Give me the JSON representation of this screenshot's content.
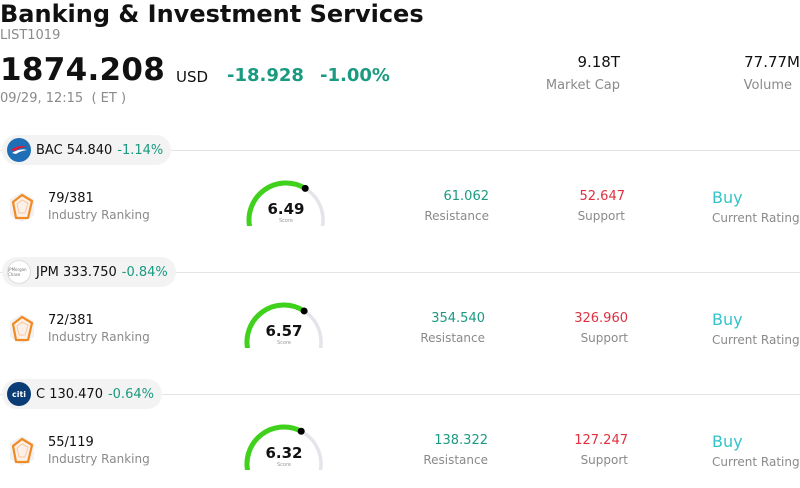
{
  "header": {
    "title": "Banking & Investment Services",
    "code": "LIST1019",
    "price": "1874.208",
    "currency": "USD",
    "change": "-18.928",
    "change_pct": "-1.00%",
    "time": "09/29, 12:15  ( ET )",
    "market_cap_value": "9.18T",
    "market_cap_label": "Market Cap",
    "volume_value": "77.77M",
    "volume_label": "Volume"
  },
  "stocks": [
    {
      "ticker": "BAC 54.840",
      "pct": "-1.14%",
      "logo": "bank-of-america-logo",
      "rank": "79/381",
      "rank_label": "Industry Ranking",
      "score": "6.49",
      "score_fraction": 0.649,
      "score_label": "Score",
      "resistance": "61.062",
      "resistance_label": "Resistance",
      "support": "52.647",
      "support_label": "Support",
      "rating": "Buy",
      "rating_label": "Current Rating"
    },
    {
      "ticker": "JPM 333.750",
      "pct": "-0.84%",
      "logo": "jpmorgan-logo",
      "logo_text": "JPMorgan Chase",
      "rank": "72/381",
      "rank_label": "Industry Ranking",
      "score": "6.57",
      "score_fraction": 0.657,
      "score_label": "Score",
      "resistance": "354.540",
      "resistance_label": "Resistance",
      "support": "326.960",
      "support_label": "Support",
      "rating": "Buy",
      "rating_label": "Current Rating"
    },
    {
      "ticker": "C 130.470",
      "pct": "-0.64%",
      "logo": "citi-logo",
      "logo_text": "citi",
      "rank": "55/119",
      "rank_label": "Industry Ranking",
      "score": "6.32",
      "score_fraction": 0.632,
      "score_label": "Score",
      "resistance": "138.322",
      "resistance_label": "Resistance",
      "support": "127.247",
      "support_label": "Support",
      "rating": "Buy",
      "rating_label": "Current Rating"
    }
  ],
  "colors": {
    "positive_teal": "#1a9a80",
    "support_red": "#e0303f",
    "rating_cyan": "#35c3c8",
    "gauge_green": "#3fd11b",
    "gauge_track": "#e4e4ea"
  }
}
